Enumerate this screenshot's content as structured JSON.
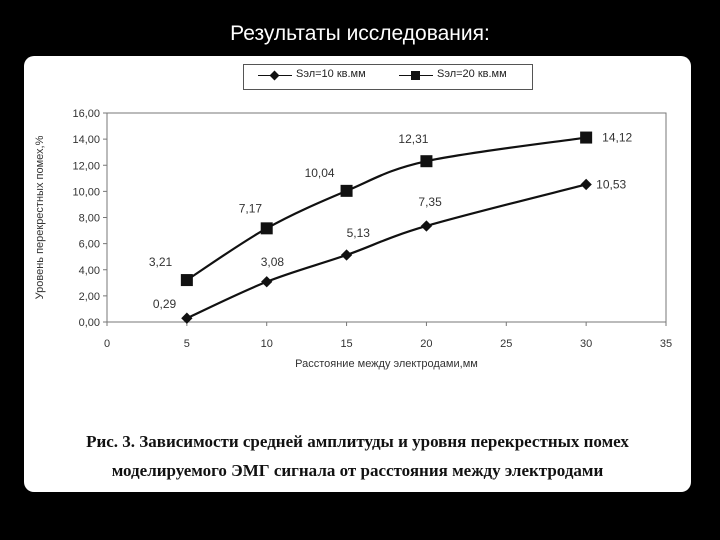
{
  "slide": {
    "title": "Результаты исследования:"
  },
  "caption": {
    "line1": "Рис. 3. Зависимости средней амплитуды и уровня перекрестных помех",
    "line2": "моделируемого ЭМГ сигнала от расстояния между электродами"
  },
  "chart_data": {
    "type": "line",
    "title": "",
    "xlabel": "Расстояние между электродами,мм",
    "ylabel": "Уровень перекрестных помех,%",
    "xlim": [
      0,
      35
    ],
    "ylim": [
      0,
      16
    ],
    "x_ticks": [
      "0",
      "5",
      "10",
      "15",
      "20",
      "25",
      "30",
      "35"
    ],
    "y_ticks": [
      "0,00",
      "2,00",
      "4,00",
      "6,00",
      "8,00",
      "10,00",
      "12,00",
      "14,00",
      "16,00"
    ],
    "grid": false,
    "legend": "top",
    "series": [
      {
        "name": "Sэл=10 кв.мм",
        "marker": "diamond",
        "x": [
          5,
          10,
          15,
          20,
          30
        ],
        "y": [
          0.29,
          3.08,
          5.13,
          7.35,
          10.53
        ],
        "labels": [
          "0,29",
          "3,08",
          "5,13",
          "7,35",
          "10,53"
        ],
        "color": "#111111"
      },
      {
        "name": "Sэл=20 кв.мм",
        "marker": "square",
        "x": [
          5,
          10,
          15,
          20,
          30
        ],
        "y": [
          3.21,
          7.17,
          10.04,
          12.31,
          14.12
        ],
        "labels": [
          "3,21",
          "7,17",
          "10,04",
          "12,31",
          "14,12"
        ],
        "color": "#111111"
      }
    ]
  }
}
